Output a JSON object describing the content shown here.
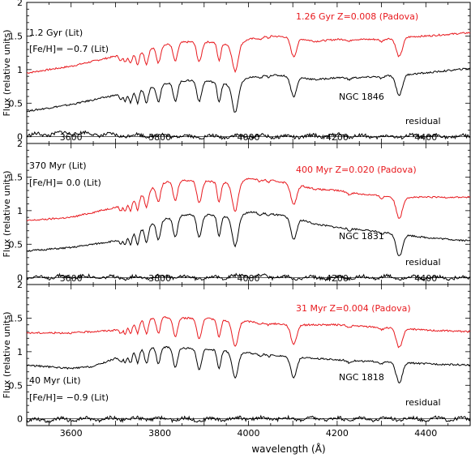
{
  "figure": {
    "xlabel": "wavelength (Å)",
    "ylabel": "Flux (relative units)",
    "xlim": [
      3500,
      4500
    ],
    "x_ticks": [
      3600,
      3800,
      4000,
      4200,
      4400
    ],
    "y_ticks": [
      "0",
      "0.5",
      "1",
      "1.5",
      "2"
    ],
    "colors": {
      "model": "#e8191e",
      "observed": "#000000",
      "axes": "#000000"
    }
  },
  "chart_data": [
    {
      "type": "line",
      "xlabel": "",
      "ylabel": "Flux (relative units)",
      "xlim": [
        3500,
        4500
      ],
      "ylim": [
        -0.1,
        2.0
      ],
      "x_ticks_labeled": false,
      "annotations": {
        "lit_age": "1.2 Gyr (Lit)",
        "lit_feh": "[Fe/H]= −0.7 (Lit)",
        "model": "1.26 Gyr Z=0.008 (Padova)",
        "cluster": "NGC 1846",
        "residual": "residual"
      },
      "series": [
        {
          "name": "1.26 Gyr Z=0.008 (Padova)",
          "color": "#e8191e",
          "x": [
            3500,
            3600,
            3700,
            3750,
            3800,
            3835,
            3889,
            3934,
            3970,
            4000,
            4050,
            4102,
            4150,
            4200,
            4250,
            4300,
            4340,
            4400,
            4500
          ],
          "y": [
            0.95,
            1.05,
            1.2,
            1.25,
            1.35,
            1.4,
            1.42,
            1.4,
            1.35,
            1.45,
            1.5,
            1.48,
            1.42,
            1.45,
            1.45,
            1.45,
            1.48,
            1.5,
            1.55
          ]
        },
        {
          "name": "NGC 1846",
          "color": "#000000",
          "x": [
            3500,
            3600,
            3700,
            3750,
            3800,
            3835,
            3889,
            3934,
            3970,
            4000,
            4050,
            4102,
            4150,
            4200,
            4250,
            4300,
            4340,
            4400,
            4500
          ],
          "y": [
            0.38,
            0.48,
            0.62,
            0.68,
            0.78,
            0.82,
            0.85,
            0.8,
            0.75,
            0.88,
            0.92,
            0.9,
            0.85,
            0.88,
            0.88,
            0.9,
            0.92,
            0.95,
            1.02
          ]
        },
        {
          "name": "residual",
          "color": "#000000",
          "x": [
            3500,
            3600,
            3700,
            3800,
            3900,
            4000,
            4100,
            4200,
            4300,
            4400,
            4500
          ],
          "y": [
            0.02,
            0.06,
            0.02,
            0.02,
            0.0,
            0.01,
            0.0,
            0.02,
            0.0,
            0.01,
            0.0
          ]
        }
      ]
    },
    {
      "type": "line",
      "xlabel": "",
      "ylabel": "Flux (relative units)",
      "xlim": [
        3500,
        4500
      ],
      "ylim": [
        -0.1,
        2.0
      ],
      "x_ticks_labeled": true,
      "annotations": {
        "lit_age": "370 Myr (Lit)",
        "lit_feh": "[Fe/H]= 0.0 (Lit)",
        "model": "400 Myr Z=0.020 (Padova)",
        "cluster": "NGC 1831",
        "residual": "residual"
      },
      "series": [
        {
          "name": "400 Myr Z=0.020 (Padova)",
          "color": "#e8191e",
          "x": [
            3500,
            3600,
            3700,
            3750,
            3800,
            3835,
            3889,
            3934,
            3970,
            4000,
            4050,
            4102,
            4150,
            4200,
            4250,
            4300,
            4340,
            4400,
            4500
          ],
          "y": [
            0.85,
            0.9,
            1.05,
            1.2,
            1.4,
            1.45,
            1.45,
            1.42,
            1.4,
            1.48,
            1.45,
            1.4,
            1.32,
            1.3,
            1.25,
            1.22,
            1.2,
            1.2,
            1.2
          ]
        },
        {
          "name": "NGC 1831",
          "color": "#000000",
          "x": [
            3500,
            3600,
            3700,
            3750,
            3800,
            3835,
            3889,
            3934,
            3970,
            4000,
            4050,
            4102,
            4150,
            4200,
            4250,
            4300,
            4340,
            4400,
            4500
          ],
          "y": [
            0.4,
            0.45,
            0.55,
            0.7,
            0.85,
            0.92,
            0.95,
            0.92,
            0.9,
            0.98,
            0.95,
            0.9,
            0.8,
            0.75,
            0.72,
            0.68,
            0.65,
            0.6,
            0.55
          ]
        },
        {
          "name": "residual",
          "color": "#000000",
          "x": [
            3500,
            3600,
            3700,
            3800,
            3900,
            4000,
            4100,
            4200,
            4300,
            4400,
            4500
          ],
          "y": [
            0.0,
            0.02,
            0.0,
            0.02,
            0.0,
            0.03,
            0.0,
            0.0,
            0.01,
            0.0,
            0.0
          ]
        }
      ]
    },
    {
      "type": "line",
      "xlabel": "wavelength (Å)",
      "ylabel": "Flux (relative units)",
      "xlim": [
        3500,
        4500
      ],
      "ylim": [
        -0.1,
        2.0
      ],
      "x_ticks_labeled": true,
      "annotations": {
        "lit_age": "40 Myr (Lit)",
        "lit_feh": "[Fe/H]= −0.9 (Lit)",
        "model": "31 Myr Z=0.004 (Padova)",
        "cluster": "NGC 1818",
        "residual": "residual"
      },
      "series": [
        {
          "name": "31 Myr Z=0.004 (Padova)",
          "color": "#e8191e",
          "x": [
            3500,
            3600,
            3700,
            3750,
            3800,
            3835,
            3889,
            3934,
            3970,
            4000,
            4050,
            4102,
            4150,
            4200,
            4250,
            4300,
            4340,
            4400,
            4500
          ],
          "y": [
            1.28,
            1.28,
            1.32,
            1.45,
            1.52,
            1.5,
            1.5,
            1.48,
            1.45,
            1.45,
            1.42,
            1.4,
            1.4,
            1.4,
            1.38,
            1.36,
            1.35,
            1.32,
            1.3
          ]
        },
        {
          "name": "NGC 1818",
          "color": "#000000",
          "x": [
            3500,
            3600,
            3650,
            3700,
            3750,
            3800,
            3835,
            3889,
            3934,
            3970,
            4000,
            4050,
            4102,
            4150,
            4200,
            4250,
            4300,
            4340,
            4400,
            4500
          ],
          "y": [
            0.8,
            0.75,
            0.78,
            0.9,
            1.02,
            1.08,
            1.05,
            1.05,
            1.02,
            1.0,
            0.98,
            0.95,
            0.92,
            0.9,
            0.88,
            0.86,
            0.85,
            0.84,
            0.82,
            0.8
          ]
        },
        {
          "name": "residual",
          "color": "#000000",
          "x": [
            3500,
            3600,
            3700,
            3800,
            3900,
            4000,
            4100,
            4200,
            4300,
            4400,
            4500
          ],
          "y": [
            -0.02,
            -0.01,
            0.0,
            0.0,
            -0.01,
            0.01,
            0.0,
            0.0,
            0.0,
            0.0,
            0.0
          ]
        }
      ]
    }
  ]
}
